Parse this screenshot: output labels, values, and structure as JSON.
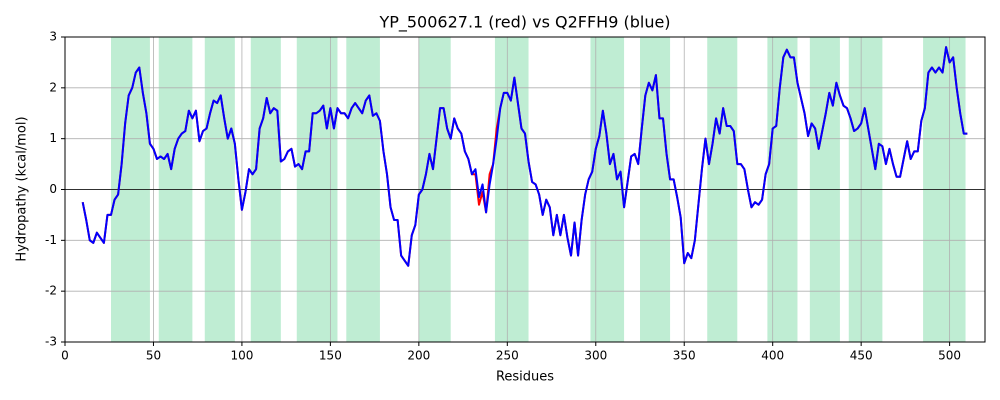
{
  "chart_data": {
    "type": "line",
    "title": "YP_500627.1 (red) vs Q2FFH9 (blue)",
    "xlabel": "Residues",
    "ylabel": "Hydropathy (kcal/mol)",
    "xlim": [
      0,
      520
    ],
    "ylim": [
      -3,
      3
    ],
    "xticks": [
      0,
      50,
      100,
      150,
      200,
      250,
      300,
      350,
      400,
      450,
      500
    ],
    "yticks": [
      -3,
      -2,
      -1,
      0,
      1,
      2,
      3
    ],
    "grid": true,
    "axhline": 0,
    "span_color": "#bfedd3",
    "spans": [
      [
        26,
        48
      ],
      [
        53,
        72
      ],
      [
        79,
        96
      ],
      [
        105,
        122
      ],
      [
        131,
        154
      ],
      [
        159,
        178
      ],
      [
        200,
        218
      ],
      [
        243,
        262
      ],
      [
        297,
        316
      ],
      [
        325,
        342
      ],
      [
        363,
        380
      ],
      [
        397,
        414
      ],
      [
        421,
        438
      ],
      [
        443,
        462
      ],
      [
        485,
        509
      ]
    ],
    "x": [
      10,
      12,
      14,
      16,
      18,
      20,
      22,
      24,
      26,
      28,
      30,
      32,
      34,
      36,
      38,
      40,
      42,
      44,
      46,
      48,
      50,
      52,
      54,
      56,
      58,
      60,
      62,
      64,
      66,
      68,
      70,
      72,
      74,
      76,
      78,
      80,
      82,
      84,
      86,
      88,
      90,
      92,
      94,
      96,
      98,
      100,
      102,
      104,
      106,
      108,
      110,
      112,
      114,
      116,
      118,
      120,
      122,
      124,
      126,
      128,
      130,
      132,
      134,
      136,
      138,
      140,
      142,
      144,
      146,
      148,
      150,
      152,
      154,
      156,
      158,
      160,
      162,
      164,
      166,
      168,
      170,
      172,
      174,
      176,
      178,
      180,
      182,
      184,
      186,
      188,
      190,
      192,
      194,
      196,
      198,
      200,
      202,
      204,
      206,
      208,
      210,
      212,
      214,
      216,
      218,
      220,
      222,
      224,
      226,
      228,
      230,
      232,
      234,
      236,
      238,
      240,
      242,
      244,
      246,
      248,
      250,
      252,
      254,
      256,
      258,
      260,
      262,
      264,
      266,
      268,
      270,
      272,
      274,
      276,
      278,
      280,
      282,
      284,
      286,
      288,
      290,
      292,
      294,
      296,
      298,
      300,
      302,
      304,
      306,
      308,
      310,
      312,
      314,
      316,
      318,
      320,
      322,
      324,
      326,
      328,
      330,
      332,
      334,
      336,
      338,
      340,
      342,
      344,
      346,
      348,
      350,
      352,
      354,
      356,
      358,
      360,
      362,
      364,
      366,
      368,
      370,
      372,
      374,
      376,
      378,
      380,
      382,
      384,
      386,
      388,
      390,
      392,
      394,
      396,
      398,
      400,
      402,
      404,
      406,
      408,
      410,
      412,
      414,
      416,
      418,
      420,
      422,
      424,
      426,
      428,
      430,
      432,
      434,
      436,
      438,
      440,
      442,
      444,
      446,
      448,
      450,
      452,
      454,
      456,
      458,
      460,
      462,
      464,
      466,
      468,
      470,
      472,
      474,
      476,
      478,
      480,
      482,
      484,
      486,
      488,
      490,
      492,
      494,
      496,
      498,
      500,
      502,
      504,
      506,
      508,
      510
    ],
    "series": [
      {
        "name": "YP_500627.1",
        "color": "#ff0000",
        "values": [
          -0.25,
          -0.6,
          -1.0,
          -1.05,
          -0.85,
          -0.95,
          -1.05,
          -0.5,
          -0.5,
          -0.2,
          -0.1,
          0.5,
          1.3,
          1.85,
          2.0,
          2.3,
          2.4,
          1.9,
          1.5,
          0.9,
          0.8,
          0.6,
          0.65,
          0.6,
          0.7,
          0.4,
          0.8,
          1.0,
          1.1,
          1.15,
          1.55,
          1.4,
          1.55,
          0.95,
          1.15,
          1.2,
          1.5,
          1.75,
          1.7,
          1.85,
          1.4,
          1.0,
          1.2,
          0.9,
          0.2,
          -0.4,
          -0.05,
          0.4,
          0.3,
          0.4,
          1.2,
          1.4,
          1.8,
          1.5,
          1.6,
          1.55,
          0.55,
          0.6,
          0.75,
          0.8,
          0.45,
          0.5,
          0.4,
          0.75,
          0.75,
          1.5,
          1.5,
          1.55,
          1.65,
          1.2,
          1.6,
          1.2,
          1.6,
          1.5,
          1.5,
          1.4,
          1.6,
          1.7,
          1.6,
          1.5,
          1.75,
          1.85,
          1.45,
          1.5,
          1.35,
          0.75,
          0.3,
          -0.35,
          -0.6,
          -0.6,
          -1.3,
          -1.4,
          -1.5,
          -0.9,
          -0.7,
          -0.1,
          0.0,
          0.3,
          0.7,
          0.4,
          1.0,
          1.6,
          1.6,
          1.2,
          1.0,
          1.4,
          1.2,
          1.1,
          0.75,
          0.6,
          0.3,
          0.3,
          -0.3,
          -0.05,
          -0.45,
          0.3,
          0.5,
          1.2,
          1.6,
          1.9,
          1.9,
          1.75,
          2.2,
          1.7,
          1.2,
          1.1,
          0.55,
          0.15,
          0.1,
          -0.1,
          -0.5,
          -0.2,
          -0.35,
          -0.9,
          -0.5,
          -0.9,
          -0.5,
          -0.95,
          -1.3,
          -0.65,
          -1.3,
          -0.6,
          -0.1,
          0.2,
          0.35,
          0.8,
          1.05,
          1.55,
          1.1,
          0.5,
          0.7,
          0.2,
          0.35,
          -0.35,
          0.15,
          0.65,
          0.7,
          0.5,
          1.2,
          1.85,
          2.1,
          1.95,
          2.25,
          1.4,
          1.4,
          0.7,
          0.2,
          0.2,
          -0.15,
          -0.55,
          -1.45,
          -1.25,
          -1.35,
          -1.0,
          -0.3,
          0.4,
          1.0,
          0.5,
          0.9,
          1.4,
          1.1,
          1.6,
          1.25,
          1.25,
          1.15,
          0.5,
          0.5,
          0.4,
          0.0,
          -0.35,
          -0.25,
          -0.3,
          -0.2,
          0.3,
          0.5,
          1.2,
          1.25,
          2.0,
          2.6,
          2.75,
          2.6,
          2.6,
          2.1,
          1.8,
          1.5,
          1.05,
          1.3,
          1.2,
          0.8,
          1.15,
          1.5,
          1.9,
          1.65,
          2.1,
          1.85,
          1.65,
          1.6,
          1.4,
          1.15,
          1.2,
          1.3,
          1.6,
          1.2,
          0.8,
          0.4,
          0.9,
          0.85,
          0.5,
          0.8,
          0.5,
          0.25,
          0.25,
          0.6,
          0.95,
          0.6,
          0.75,
          0.75,
          1.35,
          1.6,
          2.3,
          2.4,
          2.3,
          2.4,
          2.3,
          2.8,
          2.5,
          2.6,
          2.0,
          1.5,
          1.1,
          1.1
        ]
      },
      {
        "name": "Q2FFH9",
        "color": "#0000ff",
        "values": [
          -0.25,
          -0.6,
          -1.0,
          -1.05,
          -0.85,
          -0.95,
          -1.05,
          -0.5,
          -0.5,
          -0.2,
          -0.1,
          0.5,
          1.3,
          1.85,
          2.0,
          2.3,
          2.4,
          1.9,
          1.5,
          0.9,
          0.8,
          0.6,
          0.65,
          0.6,
          0.7,
          0.4,
          0.8,
          1.0,
          1.1,
          1.15,
          1.55,
          1.4,
          1.55,
          0.95,
          1.15,
          1.2,
          1.5,
          1.75,
          1.7,
          1.85,
          1.4,
          1.0,
          1.2,
          0.9,
          0.2,
          -0.4,
          -0.05,
          0.4,
          0.3,
          0.4,
          1.2,
          1.4,
          1.8,
          1.5,
          1.6,
          1.55,
          0.55,
          0.6,
          0.75,
          0.8,
          0.45,
          0.5,
          0.4,
          0.75,
          0.75,
          1.5,
          1.5,
          1.55,
          1.65,
          1.2,
          1.6,
          1.2,
          1.6,
          1.5,
          1.5,
          1.4,
          1.6,
          1.7,
          1.6,
          1.5,
          1.75,
          1.85,
          1.45,
          1.5,
          1.35,
          0.75,
          0.3,
          -0.35,
          -0.6,
          -0.6,
          -1.3,
          -1.4,
          -1.5,
          -0.9,
          -0.7,
          -0.1,
          0.0,
          0.3,
          0.7,
          0.4,
          1.0,
          1.6,
          1.6,
          1.2,
          1.0,
          1.4,
          1.2,
          1.1,
          0.75,
          0.6,
          0.3,
          0.4,
          -0.15,
          0.1,
          -0.45,
          0.1,
          0.5,
          1.0,
          1.6,
          1.9,
          1.9,
          1.75,
          2.2,
          1.7,
          1.2,
          1.1,
          0.55,
          0.15,
          0.1,
          -0.1,
          -0.5,
          -0.2,
          -0.35,
          -0.9,
          -0.5,
          -0.9,
          -0.5,
          -0.95,
          -1.3,
          -0.65,
          -1.3,
          -0.6,
          -0.1,
          0.2,
          0.35,
          0.8,
          1.05,
          1.55,
          1.1,
          0.5,
          0.7,
          0.2,
          0.35,
          -0.35,
          0.15,
          0.65,
          0.7,
          0.5,
          1.2,
          1.85,
          2.1,
          1.95,
          2.25,
          1.4,
          1.4,
          0.7,
          0.2,
          0.2,
          -0.15,
          -0.55,
          -1.45,
          -1.25,
          -1.35,
          -1.0,
          -0.3,
          0.4,
          1.0,
          0.5,
          0.9,
          1.4,
          1.1,
          1.6,
          1.25,
          1.25,
          1.15,
          0.5,
          0.5,
          0.4,
          0.0,
          -0.35,
          -0.25,
          -0.3,
          -0.2,
          0.3,
          0.5,
          1.2,
          1.25,
          2.0,
          2.6,
          2.75,
          2.6,
          2.6,
          2.1,
          1.8,
          1.5,
          1.05,
          1.3,
          1.2,
          0.8,
          1.15,
          1.5,
          1.9,
          1.65,
          2.1,
          1.85,
          1.65,
          1.6,
          1.4,
          1.15,
          1.2,
          1.3,
          1.6,
          1.2,
          0.8,
          0.4,
          0.9,
          0.85,
          0.5,
          0.8,
          0.5,
          0.25,
          0.25,
          0.6,
          0.95,
          0.6,
          0.75,
          0.75,
          1.35,
          1.6,
          2.3,
          2.4,
          2.3,
          2.4,
          2.3,
          2.8,
          2.5,
          2.6,
          2.0,
          1.5,
          1.1,
          1.1
        ]
      }
    ]
  }
}
